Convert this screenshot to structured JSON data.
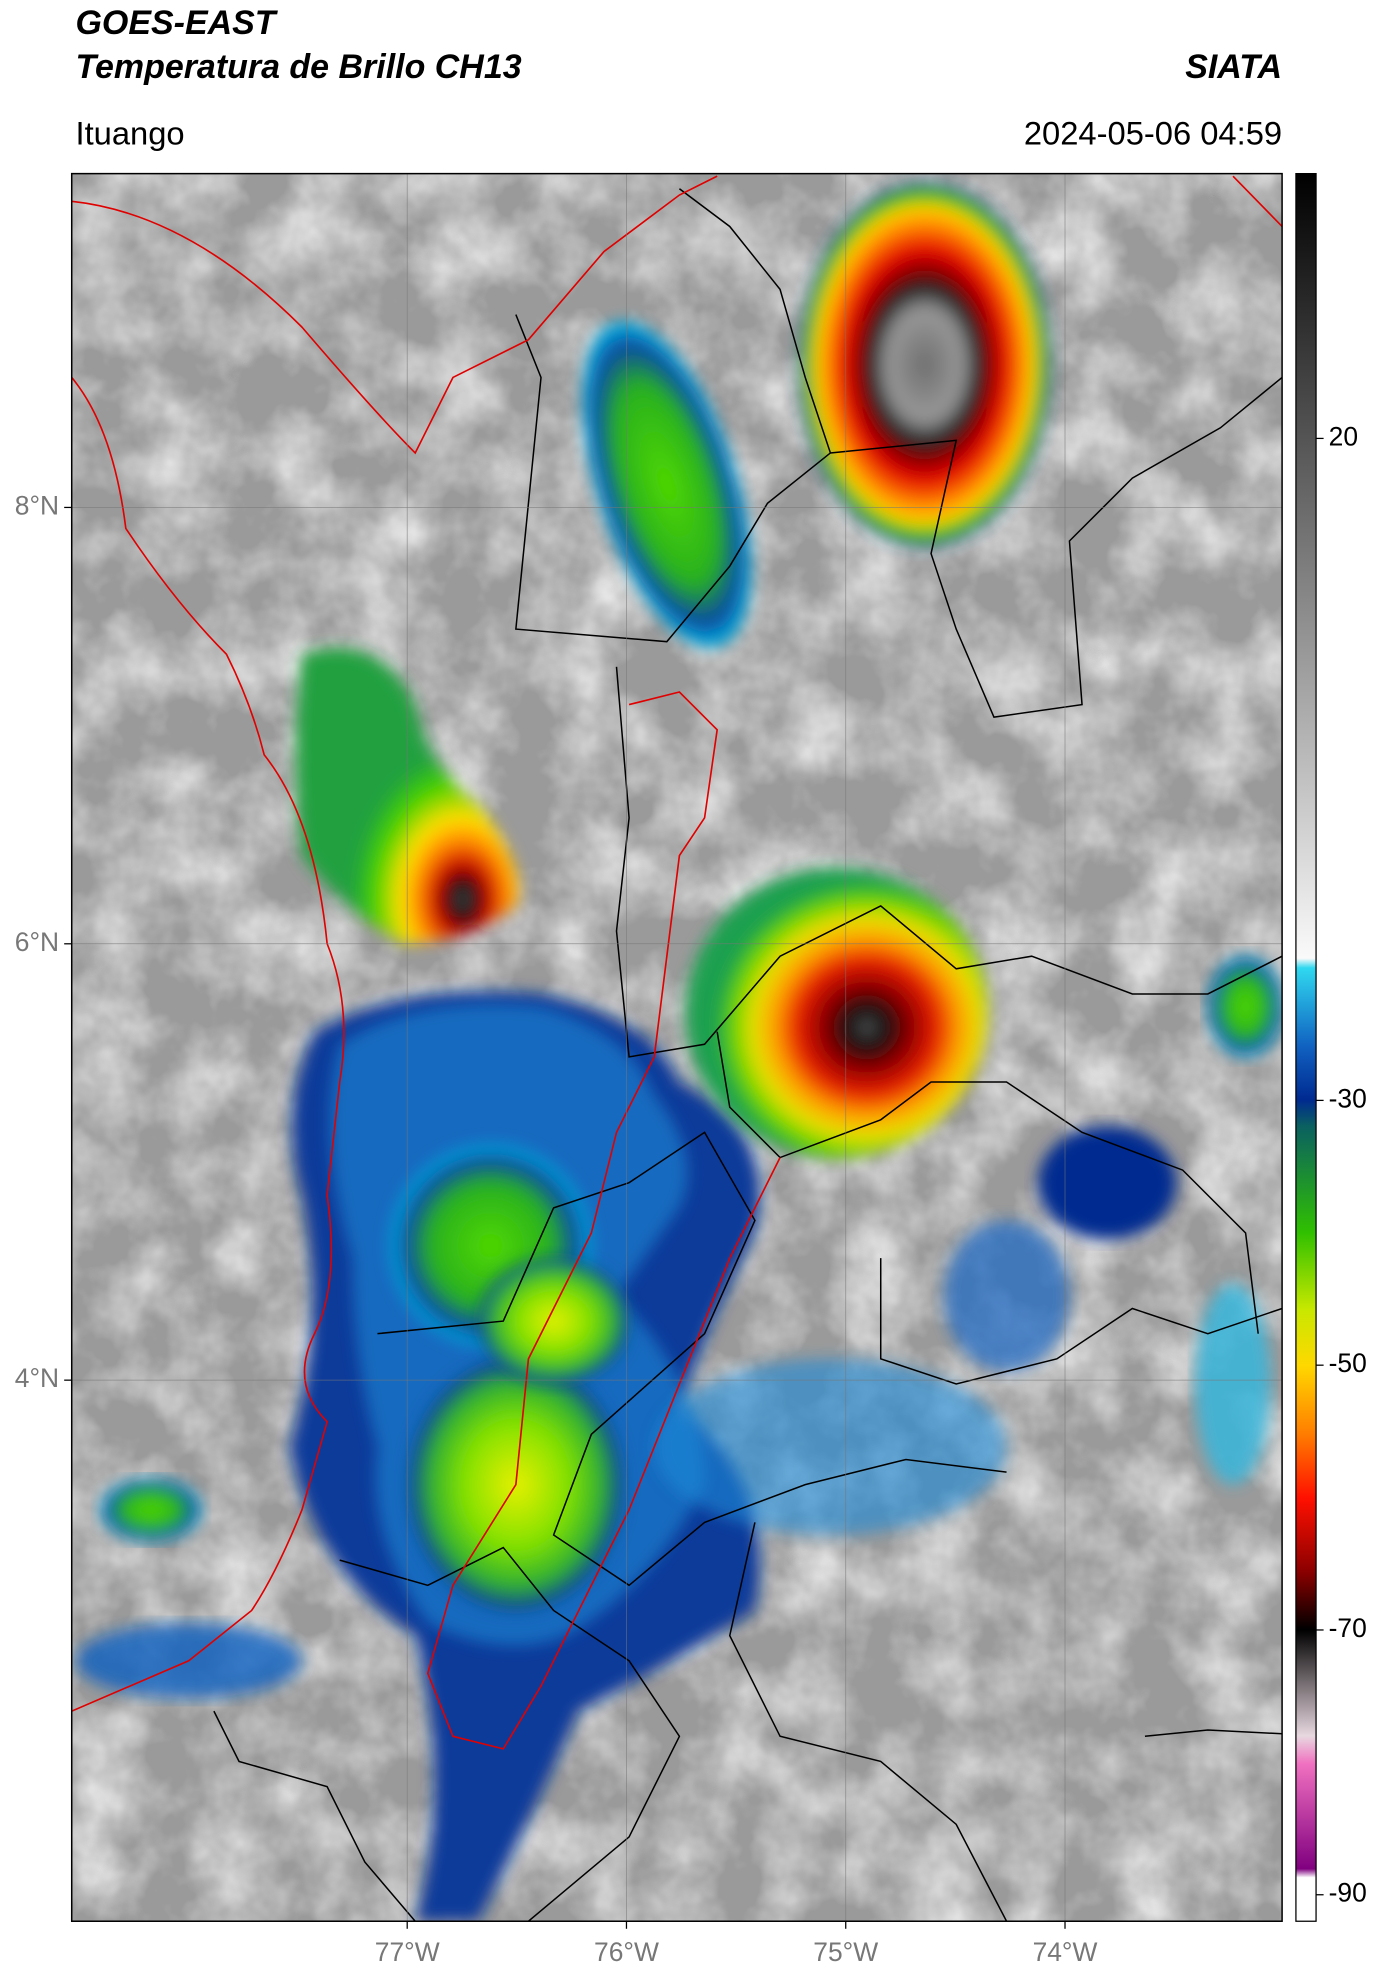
{
  "map": {
    "title": "GOES-EAST",
    "subtitle": "Temperatura de Brillo CH13",
    "source": "SIATA",
    "region": "Ituango",
    "timestamp": "2024-05-06 04:59",
    "xlim": [
      -78.53,
      -73.01
    ],
    "ylim": [
      1.52,
      9.53
    ],
    "xticks": [
      {
        "value": -77,
        "label": "77°W"
      },
      {
        "value": -76,
        "label": "76°W"
      },
      {
        "value": -75,
        "label": "75°W"
      },
      {
        "value": -74,
        "label": "74°W"
      }
    ],
    "yticks": [
      {
        "value": 8,
        "label": "8°N"
      },
      {
        "value": 6,
        "label": "6°N"
      },
      {
        "value": 4,
        "label": "4°N"
      }
    ],
    "grid": true,
    "colorbar": {
      "lim": [
        -92,
        40
      ],
      "ticks": [
        20,
        -30,
        -50,
        -70,
        -90
      ]
    }
  }
}
